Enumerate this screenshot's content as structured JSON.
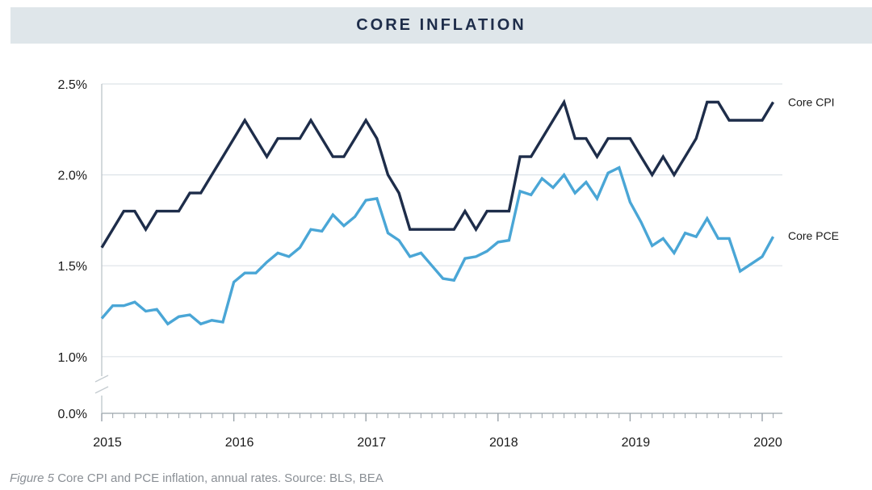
{
  "header": {
    "title": "CORE INFLATION"
  },
  "caption": {
    "figure": "Figure 5",
    "text": " Core CPI and PCE inflation, annual rates. Source: BLS, BEA"
  },
  "colors": {
    "cpi": "#1e2d4a",
    "pce": "#4aa6d6",
    "grid": "#dde3e8",
    "title_bg": "#dfe6ea"
  },
  "chart_data": {
    "type": "line",
    "title": "CORE INFLATION",
    "y_ticks": [
      "2.5%",
      "2.0%",
      "1.5%",
      "1.0%",
      "0.0%"
    ],
    "y_tick_values": [
      2.5,
      2.0,
      1.5,
      1.0,
      0.0
    ],
    "x_ticks": [
      "2015",
      "2016",
      "2017",
      "2018",
      "2019",
      "2020"
    ],
    "axis_break": "between 0.0% and 1.0%",
    "grid": true,
    "legend": "end-of-line labels",
    "x_start": "2015-01",
    "frequency": "monthly",
    "series": [
      {
        "name": "Core CPI",
        "values": [
          1.6,
          1.7,
          1.8,
          1.8,
          1.7,
          1.8,
          1.8,
          1.8,
          1.9,
          1.9,
          2.0,
          2.1,
          2.2,
          2.3,
          2.2,
          2.1,
          2.2,
          2.2,
          2.2,
          2.3,
          2.2,
          2.1,
          2.1,
          2.2,
          2.3,
          2.2,
          2.0,
          1.9,
          1.7,
          1.7,
          1.7,
          1.7,
          1.7,
          1.8,
          1.7,
          1.8,
          1.8,
          1.8,
          2.1,
          2.1,
          2.2,
          2.3,
          2.4,
          2.2,
          2.2,
          2.1,
          2.2,
          2.2,
          2.2,
          2.1,
          2.0,
          2.1,
          2.0,
          2.1,
          2.2,
          2.4,
          2.4,
          2.3,
          2.3,
          2.3,
          2.3,
          2.4
        ]
      },
      {
        "name": "Core PCE",
        "values": [
          1.21,
          1.28,
          1.28,
          1.3,
          1.25,
          1.26,
          1.18,
          1.22,
          1.23,
          1.18,
          1.2,
          1.19,
          1.41,
          1.46,
          1.46,
          1.52,
          1.57,
          1.55,
          1.6,
          1.7,
          1.69,
          1.78,
          1.72,
          1.77,
          1.86,
          1.87,
          1.68,
          1.64,
          1.55,
          1.57,
          1.5,
          1.43,
          1.42,
          1.54,
          1.55,
          1.58,
          1.63,
          1.64,
          1.91,
          1.89,
          1.98,
          1.93,
          2.0,
          1.9,
          1.96,
          1.87,
          2.01,
          2.04,
          1.85,
          1.74,
          1.61,
          1.65,
          1.57,
          1.68,
          1.66,
          1.76,
          1.65,
          1.65,
          1.47,
          1.51,
          1.55,
          1.66
        ]
      }
    ]
  }
}
